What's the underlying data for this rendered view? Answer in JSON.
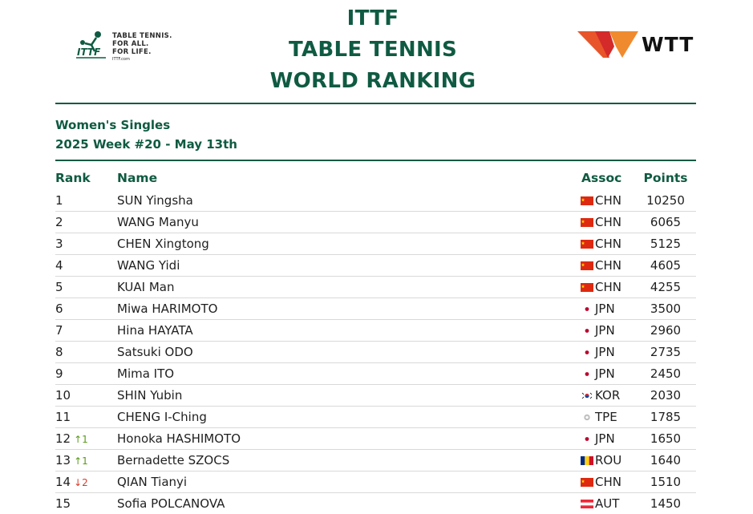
{
  "brand": {
    "ittf_lines": [
      "TABLE TENNIS.",
      "FOR ALL.",
      "FOR LIFE."
    ],
    "ittf_url": "ITTF.com",
    "wtt_text": "WTT"
  },
  "title": {
    "line1": "ITTF",
    "line2": "TABLE TENNIS",
    "line3": "WORLD RANKING"
  },
  "subtitle": {
    "category": "Women's Singles",
    "week": "2025 Week #20 - May 13th"
  },
  "columns": {
    "rank": "Rank",
    "name": "Name",
    "assoc": "Assoc",
    "points": "Points"
  },
  "colors": {
    "accent": "#0f5a42",
    "up": "#5a9a1a",
    "down": "#d93a2b"
  },
  "rows": [
    {
      "rank": "1",
      "move": "",
      "dir": "",
      "name": "SUN Yingsha",
      "flag": "china-flag-icon",
      "assoc": "CHN",
      "points": "10250"
    },
    {
      "rank": "2",
      "move": "",
      "dir": "",
      "name": "WANG Manyu",
      "flag": "china-flag-icon",
      "assoc": "CHN",
      "points": "6065"
    },
    {
      "rank": "3",
      "move": "",
      "dir": "",
      "name": "CHEN Xingtong",
      "flag": "china-flag-icon",
      "assoc": "CHN",
      "points": "5125"
    },
    {
      "rank": "4",
      "move": "",
      "dir": "",
      "name": "WANG Yidi",
      "flag": "china-flag-icon",
      "assoc": "CHN",
      "points": "4605"
    },
    {
      "rank": "5",
      "move": "",
      "dir": "",
      "name": "KUAI Man",
      "flag": "china-flag-icon",
      "assoc": "CHN",
      "points": "4255"
    },
    {
      "rank": "6",
      "move": "",
      "dir": "",
      "name": "Miwa HARIMOTO",
      "flag": "japan-flag-icon",
      "assoc": "JPN",
      "points": "3500"
    },
    {
      "rank": "7",
      "move": "",
      "dir": "",
      "name": "Hina HAYATA",
      "flag": "japan-flag-icon",
      "assoc": "JPN",
      "points": "2960"
    },
    {
      "rank": "8",
      "move": "",
      "dir": "",
      "name": "Satsuki ODO",
      "flag": "japan-flag-icon",
      "assoc": "JPN",
      "points": "2735"
    },
    {
      "rank": "9",
      "move": "",
      "dir": "",
      "name": "Mima ITO",
      "flag": "japan-flag-icon",
      "assoc": "JPN",
      "points": "2450"
    },
    {
      "rank": "10",
      "move": "",
      "dir": "",
      "name": "SHIN Yubin",
      "flag": "korea-flag-icon",
      "assoc": "KOR",
      "points": "2030"
    },
    {
      "rank": "11",
      "move": "",
      "dir": "",
      "name": "CHENG I-Ching",
      "flag": "tpe-flag-icon",
      "assoc": "TPE",
      "points": "1785"
    },
    {
      "rank": "12",
      "move": "↑1",
      "dir": "up",
      "name": "Honoka HASHIMOTO",
      "flag": "japan-flag-icon",
      "assoc": "JPN",
      "points": "1650"
    },
    {
      "rank": "13",
      "move": "↑1",
      "dir": "up",
      "name": "Bernadette SZOCS",
      "flag": "romania-flag-icon",
      "assoc": "ROU",
      "points": "1640"
    },
    {
      "rank": "14",
      "move": "↓2",
      "dir": "down",
      "name": "QIAN Tianyi",
      "flag": "china-flag-icon",
      "assoc": "CHN",
      "points": "1510"
    },
    {
      "rank": "15",
      "move": "",
      "dir": "",
      "name": "Sofia POLCANOVA",
      "flag": "austria-flag-icon",
      "assoc": "AUT",
      "points": "1450"
    }
  ]
}
